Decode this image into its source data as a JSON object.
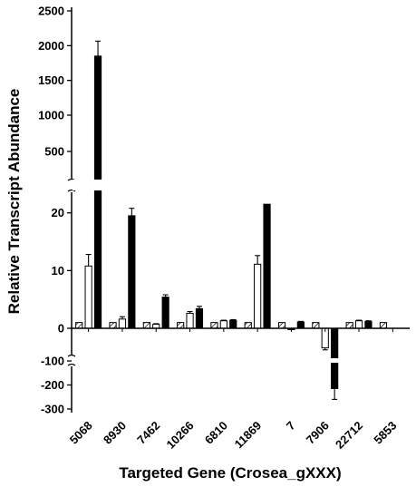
{
  "chart_data": {
    "type": "bar",
    "xlabel": "Targeted Gene (Crosea_gXXX)",
    "ylabel": "Relative Transcript Abundance",
    "categories": [
      "5068",
      "8930",
      "7462",
      "10266",
      "6810",
      "11869",
      "7",
      "7906",
      "22712",
      "5853"
    ],
    "series": [
      {
        "pattern": "hatched",
        "values": [
          1,
          1,
          1,
          1,
          1,
          1,
          1,
          1,
          1,
          1
        ]
      },
      {
        "pattern": "white",
        "values": [
          10.8,
          1.6,
          0.7,
          2.6,
          1.3,
          11.1,
          -1.5,
          -60,
          1.3,
          null
        ]
      },
      {
        "pattern": "black",
        "values": [
          1850,
          19.5,
          5.4,
          3.4,
          1.4,
          21.5,
          1.1,
          -215,
          1.2,
          null
        ]
      }
    ],
    "errors": [
      [
        0,
        0,
        0,
        0,
        0,
        0,
        0,
        0,
        0,
        0
      ],
      [
        2.0,
        0.4,
        0.1,
        0.3,
        0.1,
        1.5,
        0.6,
        6,
        0.1,
        0
      ],
      [
        215,
        1.3,
        0.4,
        0.4,
        0.1,
        0,
        0.1,
        45,
        0.1,
        0
      ]
    ],
    "y_segments": [
      {
        "range": [
          1000,
          2500
        ],
        "ticks": [
          1000,
          1500,
          2000,
          2500
        ]
      },
      {
        "range": [
          500,
          1000
        ],
        "ticks": [
          500
        ]
      },
      {
        "range": [
          0,
          22
        ],
        "ticks": [
          0,
          10,
          20
        ]
      },
      {
        "range": [
          -300,
          -100
        ],
        "ticks": [
          -100,
          -200,
          -300
        ]
      }
    ],
    "colors": {
      "black": "#000000",
      "white": "#ffffff",
      "stroke": "#000000"
    },
    "grid": false,
    "legend": "none"
  }
}
